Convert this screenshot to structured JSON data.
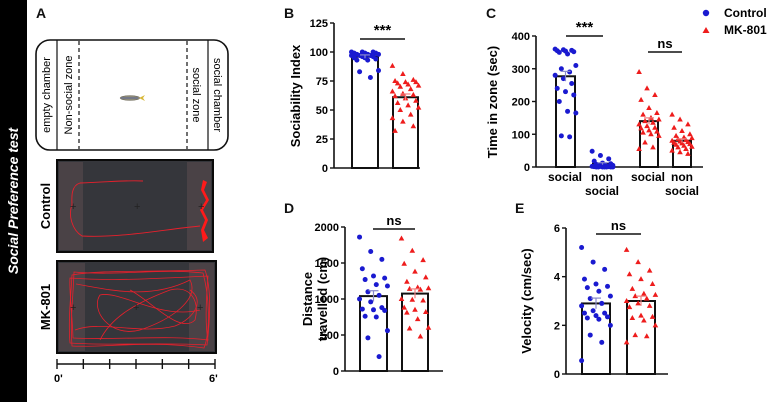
{
  "side_title": "Social Preference test",
  "panel_letters": {
    "A": "A",
    "B": "B",
    "C": "C",
    "D": "D",
    "E": "E"
  },
  "colors": {
    "control": "#1a1ad0",
    "mk801": "#ee1c1c",
    "track": "#e8202c",
    "arena": "#35363b",
    "zone": "#4a4246"
  },
  "panelA": {
    "zone_labels": [
      "empty chamber",
      "Non-social zone",
      "social zone",
      "social chamber"
    ],
    "fish_icon": "zebrafish-icon",
    "arena_labels": [
      "Control",
      "MK-801"
    ],
    "time_scale": {
      "start": "0'",
      "end": "6'",
      "ticks": 6
    }
  },
  "legend": [
    {
      "label": "Control",
      "marker": "circle",
      "color": "#1a1ad0"
    },
    {
      "label": "MK-801",
      "marker": "triangle",
      "color": "#ee1c1c"
    }
  ],
  "chart_data": [
    {
      "id": "B",
      "type": "bar",
      "title": "",
      "ylabel": "Sociability Index",
      "xlabel": "",
      "ylim": [
        0,
        125
      ],
      "yticks": [
        0,
        25,
        50,
        75,
        100,
        125
      ],
      "categories": [
        "Control",
        "MK-801"
      ],
      "values": [
        96,
        61
      ],
      "sem": [
        1.5,
        2.8
      ],
      "significance": [
        {
          "from": 0,
          "to": 1,
          "label": "***"
        }
      ],
      "points": [
        [
          100,
          100,
          100,
          99,
          99,
          99,
          98,
          98,
          98,
          97,
          97,
          97,
          96,
          96,
          95,
          95,
          94,
          93,
          93,
          84,
          83,
          78
        ],
        [
          88,
          81,
          76,
          75,
          74,
          74,
          73,
          72,
          71,
          70,
          68,
          66,
          64,
          63,
          62,
          60,
          58,
          56,
          54,
          52,
          50,
          46,
          43,
          40,
          36,
          32
        ]
      ]
    },
    {
      "id": "C",
      "type": "bar",
      "title": "",
      "ylabel": "Time in zone (sec)",
      "xlabel": "",
      "ylim": [
        0,
        400
      ],
      "yticks": [
        0,
        100,
        200,
        300,
        400
      ],
      "categories": [
        "social",
        "non social",
        "social",
        "non social"
      ],
      "groups": [
        "Control",
        "Control",
        "MK-801",
        "MK-801"
      ],
      "values": [
        277,
        10,
        140,
        80
      ],
      "sem": [
        15,
        3,
        10,
        6
      ],
      "significance": [
        {
          "from": 0,
          "to": 1,
          "label": "***"
        },
        {
          "from": 2,
          "to": 3,
          "label": "ns"
        }
      ],
      "points": [
        [
          360,
          358,
          356,
          355,
          354,
          352,
          350,
          345,
          310,
          300,
          290,
          280,
          270,
          255,
          240,
          230,
          220,
          200,
          170,
          165,
          95,
          92
        ],
        [
          48,
          35,
          25,
          18,
          12,
          10,
          8,
          6,
          5,
          4,
          3,
          2,
          2,
          1,
          1,
          0,
          0,
          0,
          0,
          0,
          0,
          0
        ],
        [
          290,
          240,
          220,
          205,
          180,
          165,
          160,
          150,
          145,
          140,
          135,
          130,
          125,
          120,
          118,
          112,
          108,
          105,
          100,
          95,
          75,
          60,
          55
        ],
        [
          160,
          145,
          130,
          120,
          110,
          100,
          95,
          90,
          88,
          85,
          82,
          80,
          78,
          76,
          74,
          72,
          70,
          68,
          65,
          62,
          60,
          55,
          50,
          45,
          40
        ]
      ]
    },
    {
      "id": "D",
      "type": "bar",
      "title": "",
      "ylabel": "Distance travelled (cm)",
      "xlabel": "",
      "ylim": [
        0,
        2000
      ],
      "yticks": [
        0,
        500,
        1000,
        1500,
        2000
      ],
      "categories": [
        "Control",
        "MK-801"
      ],
      "values": [
        1040,
        1075
      ],
      "sem": [
        75,
        65
      ],
      "significance": [
        {
          "from": 0,
          "to": 1,
          "label": "ns"
        }
      ],
      "points": [
        [
          1860,
          1660,
          1550,
          1420,
          1320,
          1290,
          1270,
          1200,
          1180,
          1100,
          1050,
          1000,
          960,
          880,
          860,
          850,
          840,
          760,
          750,
          560,
          460,
          200
        ],
        [
          1840,
          1670,
          1540,
          1490,
          1380,
          1300,
          1240,
          1160,
          1150,
          1140,
          1130,
          1000,
          990,
          980,
          880,
          850,
          820,
          810,
          720,
          600,
          590,
          480
        ]
      ]
    },
    {
      "id": "E",
      "type": "bar",
      "title": "",
      "ylabel": "Velocity (cm/sec)",
      "xlabel": "",
      "ylim": [
        0,
        6
      ],
      "yticks": [
        0,
        2,
        4,
        6
      ],
      "categories": [
        "Control",
        "MK-801"
      ],
      "values": [
        2.9,
        3.0
      ],
      "sem": [
        0.22,
        0.2
      ],
      "significance": [
        {
          "from": 0,
          "to": 1,
          "label": "ns"
        }
      ],
      "points": [
        [
          5.2,
          4.6,
          4.3,
          3.9,
          3.7,
          3.6,
          3.55,
          3.4,
          3.2,
          3.1,
          2.9,
          2.8,
          2.6,
          2.5,
          2.5,
          2.4,
          2.35,
          2.3,
          2.25,
          2.0,
          1.6,
          1.3,
          0.55
        ],
        [
          5.1,
          4.6,
          4.25,
          4.1,
          3.9,
          3.7,
          3.5,
          3.3,
          3.25,
          3.2,
          3.1,
          3.0,
          2.9,
          2.8,
          2.75,
          2.4,
          2.35,
          2.3,
          2.2,
          2.0,
          1.6,
          1.55,
          1.3
        ]
      ]
    }
  ]
}
